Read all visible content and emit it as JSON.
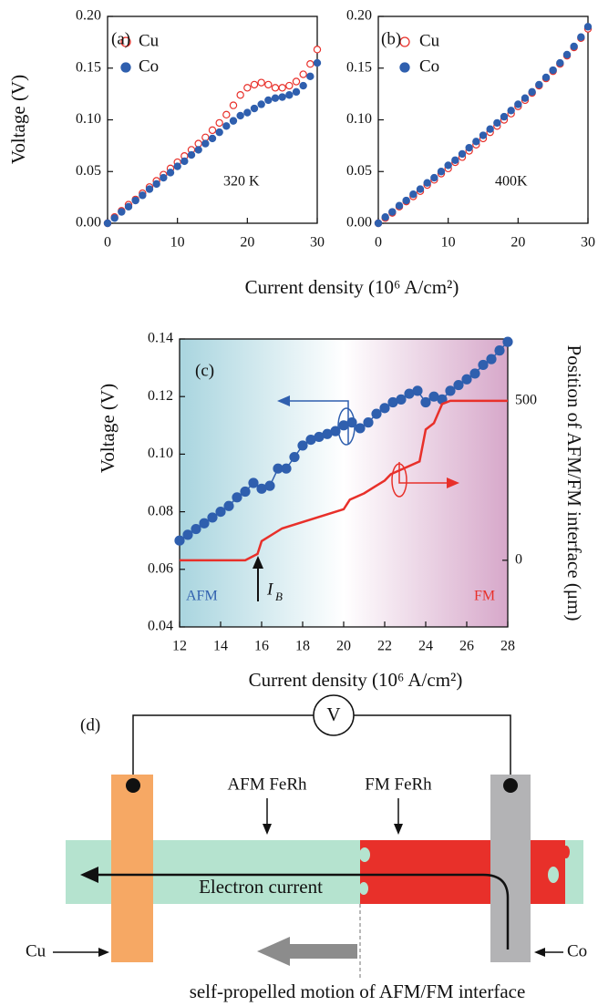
{
  "chart_data": [
    {
      "type": "scatter",
      "panel_label": "(a)",
      "annotation": "320 K",
      "xlabel": "Current density (10⁶ A/cm²)",
      "ylabel": "Voltage (V)",
      "x": [
        0,
        1,
        2,
        3,
        4,
        5,
        6,
        7,
        8,
        9,
        10,
        11,
        12,
        13,
        14,
        15,
        16,
        17,
        18,
        19,
        20,
        21,
        22,
        23,
        24,
        25,
        26,
        27,
        28,
        29,
        30
      ],
      "xlim": [
        0,
        30
      ],
      "xticks": [
        0,
        10,
        20,
        30
      ],
      "ylim": [
        0,
        0.2
      ],
      "yticks": [
        {
          "value": 0,
          "label": "0.00"
        },
        {
          "value": 0.05,
          "label": "0.05"
        },
        {
          "value": 0.1,
          "label": "0.10"
        },
        {
          "value": 0.15,
          "label": "0.15"
        },
        {
          "value": 0.2,
          "label": "0.20"
        }
      ],
      "legend": true,
      "series": [
        {
          "name": "Cu",
          "color": "#e8302a",
          "marker": "open",
          "values": [
            0,
            0.006,
            0.012,
            0.018,
            0.023,
            0.029,
            0.035,
            0.041,
            0.047,
            0.053,
            0.059,
            0.065,
            0.071,
            0.077,
            0.083,
            0.09,
            0.097,
            0.105,
            0.114,
            0.124,
            0.131,
            0.134,
            0.136,
            0.134,
            0.131,
            0.131,
            0.133,
            0.137,
            0.144,
            0.154,
            0.168
          ]
        },
        {
          "name": "Co",
          "color": "#2f5fae",
          "marker": "filled",
          "values": [
            0,
            0.005,
            0.011,
            0.016,
            0.022,
            0.027,
            0.033,
            0.038,
            0.044,
            0.049,
            0.055,
            0.06,
            0.066,
            0.071,
            0.077,
            0.082,
            0.088,
            0.094,
            0.099,
            0.104,
            0.107,
            0.111,
            0.115,
            0.119,
            0.121,
            0.122,
            0.124,
            0.127,
            0.133,
            0.142,
            0.155
          ]
        }
      ]
    },
    {
      "type": "scatter",
      "panel_label": "(b)",
      "annotation": "400K",
      "x": [
        0,
        1,
        2,
        3,
        4,
        5,
        6,
        7,
        8,
        9,
        10,
        11,
        12,
        13,
        14,
        15,
        16,
        17,
        18,
        19,
        20,
        21,
        22,
        23,
        24,
        25,
        26,
        27,
        28,
        29,
        30
      ],
      "xlim": [
        0,
        30
      ],
      "xticks": [
        0,
        10,
        20,
        30
      ],
      "ylim": [
        0,
        0.2
      ],
      "yticks": [
        {
          "value": 0,
          "label": "0.00"
        },
        {
          "value": 0.05,
          "label": "0.05"
        },
        {
          "value": 0.1,
          "label": "0.10"
        },
        {
          "value": 0.15,
          "label": "0.15"
        },
        {
          "value": 0.2,
          "label": "0.20"
        }
      ],
      "legend": true,
      "series": [
        {
          "name": "Cu",
          "color": "#e8302a",
          "marker": "open",
          "values": [
            0,
            0.005,
            0.01,
            0.016,
            0.021,
            0.026,
            0.031,
            0.037,
            0.042,
            0.048,
            0.053,
            0.059,
            0.064,
            0.07,
            0.076,
            0.082,
            0.088,
            0.094,
            0.1,
            0.106,
            0.113,
            0.119,
            0.126,
            0.133,
            0.14,
            0.147,
            0.154,
            0.162,
            0.17,
            0.179,
            0.188
          ]
        },
        {
          "name": "Co",
          "color": "#2f5fae",
          "marker": "filled",
          "values": [
            0,
            0.006,
            0.011,
            0.017,
            0.022,
            0.028,
            0.033,
            0.039,
            0.044,
            0.05,
            0.056,
            0.061,
            0.067,
            0.073,
            0.079,
            0.085,
            0.091,
            0.097,
            0.103,
            0.109,
            0.115,
            0.121,
            0.127,
            0.134,
            0.141,
            0.148,
            0.155,
            0.163,
            0.171,
            0.18,
            0.19
          ]
        }
      ]
    },
    {
      "type": "line",
      "panel_label": "(c)",
      "xlabel": "Current density (10⁶ A/cm²)",
      "ylabel": "Voltage (V)",
      "y2label": "Position of AFM/FM interface (μm)",
      "left_label": "AFM",
      "right_label": "FM",
      "marker_label": "I",
      "marker_subscript": "B",
      "background_colors": [
        "#a9d5df",
        "#ffffff",
        "#d7a8ca"
      ],
      "xlim": [
        12,
        28
      ],
      "xticks": [
        12,
        14,
        16,
        18,
        20,
        22,
        24,
        26,
        28
      ],
      "ylim": [
        0.04,
        0.14
      ],
      "yticks": [
        {
          "value": 0.04,
          "label": "0.04"
        },
        {
          "value": 0.06,
          "label": "0.06"
        },
        {
          "value": 0.08,
          "label": "0.08"
        },
        {
          "value": 0.1,
          "label": "0.10"
        },
        {
          "value": 0.12,
          "label": "0.12"
        },
        {
          "value": 0.14,
          "label": "0.14"
        }
      ],
      "y2lim": [
        -209,
        694
      ],
      "y2ticks": [
        0,
        500
      ],
      "series": [
        {
          "color": "#2f5fae",
          "marker": "filled",
          "line": true,
          "x": [
            12,
            12.4,
            12.8,
            13.2,
            13.6,
            14,
            14.4,
            14.8,
            15.2,
            15.6,
            16,
            16.4,
            16.8,
            17.2,
            17.6,
            18,
            18.4,
            18.8,
            19.2,
            19.6,
            20,
            20.4,
            20.8,
            21.2,
            21.6,
            22,
            22.4,
            22.8,
            23.2,
            23.6,
            24,
            24.4,
            24.8,
            25.2,
            25.6,
            26,
            26.4,
            26.8,
            27.2,
            27.6,
            28
          ],
          "values": [
            0.07,
            0.072,
            0.074,
            0.076,
            0.078,
            0.08,
            0.082,
            0.085,
            0.087,
            0.09,
            0.088,
            0.089,
            0.095,
            0.095,
            0.099,
            0.103,
            0.105,
            0.106,
            0.107,
            0.108,
            0.11,
            0.111,
            0.109,
            0.111,
            0.114,
            0.116,
            0.118,
            0.119,
            0.121,
            0.122,
            0.118,
            0.12,
            0.119,
            0.122,
            0.124,
            0.126,
            0.128,
            0.131,
            0.133,
            0.136,
            0.139
          ]
        },
        {
          "color": "#e8302a",
          "marker": "none",
          "line": true,
          "axis": "y2",
          "x": [
            12,
            15.2,
            15.8,
            16,
            17,
            20,
            20.3,
            21,
            21.5,
            22,
            22.3,
            23.7,
            24,
            24.4,
            24.8,
            25.2,
            28
          ],
          "values": [
            0,
            0,
            20,
            60,
            100,
            160,
            190,
            210,
            230,
            250,
            270,
            310,
            410,
            430,
            490,
            500,
            500
          ]
        }
      ]
    }
  ],
  "diagram": {
    "label": "(d)",
    "meter": "V",
    "afm_label": "AFM FeRh",
    "fm_label": "FM FeRh",
    "current_label": "Electron current",
    "left_electrode": "Cu",
    "right_electrode": "Co",
    "caption": "self-propelled motion of AFM/FM interface"
  }
}
